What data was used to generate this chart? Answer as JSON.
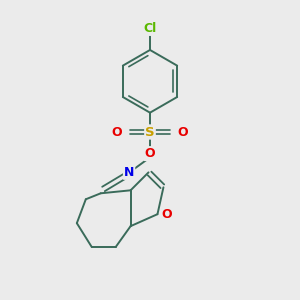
{
  "background_color": "#ebebeb",
  "bond_color": "#3a6b5a",
  "atom_colors": {
    "Cl": "#5ab800",
    "S": "#c8a000",
    "O": "#e80000",
    "N": "#0000e8",
    "C": "#3a6b5a"
  },
  "font_size_atoms": 8.5,
  "fig_width": 3.0,
  "fig_height": 3.0,
  "dpi": 100
}
